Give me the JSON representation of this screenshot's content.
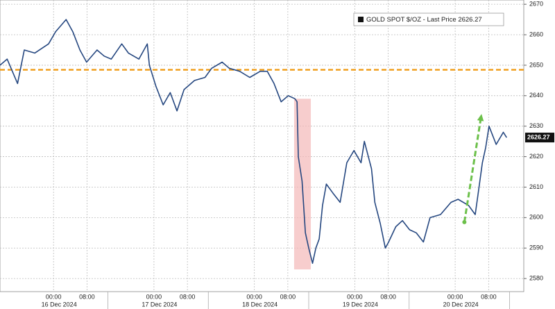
{
  "chart_data": {
    "type": "line",
    "series": [
      {
        "name": "GOLD SPOT $/OZ - Last Price 2626.27",
        "color": "#24467f",
        "values": [
          2650,
          2652,
          2644,
          2655,
          2654,
          2657,
          2661,
          2665,
          2661,
          2655,
          2651,
          2655,
          2653,
          2652,
          2657,
          2654,
          2652,
          2657,
          2650,
          2643,
          2637,
          2641,
          2635,
          2642,
          2645,
          2646,
          2649,
          2651,
          2649,
          2648,
          2646,
          2648,
          2648,
          2644,
          2638,
          2640,
          2639,
          2638,
          2620,
          2612,
          2595,
          2590,
          2585,
          2590,
          2593,
          2604,
          2611,
          2608,
          2605,
          2618,
          2622,
          2618,
          2625,
          2616,
          2605,
          2598,
          2590,
          2592,
          2597,
          2599,
          2596,
          2595,
          2592,
          2600,
          2601,
          2605,
          2606,
          2604,
          2601,
          2610,
          2618,
          2623,
          2630,
          2624,
          2628,
          2626.27
        ]
      }
    ],
    "x": [
      -12.8,
      -11.1,
      -8.6,
      -7.0,
      -4.5,
      -1.2,
      0.5,
      3.0,
      4.6,
      6.3,
      7.9,
      10.4,
      12.1,
      13.8,
      16.3,
      17.9,
      20.4,
      22.4,
      22.9,
      24.5,
      26.2,
      27.9,
      29.5,
      31.2,
      33.7,
      36.2,
      37.8,
      40.3,
      42.0,
      44.5,
      46.9,
      49.4,
      51.1,
      52.7,
      54.4,
      56.1,
      57.7,
      58.2,
      58.5,
      59.4,
      60.2,
      61.0,
      61.9,
      62.7,
      63.5,
      64.3,
      65.2,
      66.8,
      68.5,
      70.1,
      71.8,
      73.5,
      74.3,
      76.0,
      76.8,
      78.1,
      79.3,
      80.1,
      81.8,
      83.4,
      85.1,
      86.7,
      88.4,
      90.0,
      92.5,
      95.0,
      96.7,
      99.2,
      100.8,
      101.7,
      102.5,
      103.3,
      104.1,
      105.8,
      107.5,
      108.3
    ],
    "xlim": [
      -12.8,
      112.4
    ],
    "xticks": [
      {
        "value": 0,
        "label": "00:00"
      },
      {
        "value": 8,
        "label": "08:00"
      },
      {
        "value": 24,
        "label": "00:00"
      },
      {
        "value": 32,
        "label": "08:00"
      },
      {
        "value": 48,
        "label": "00:00"
      },
      {
        "value": 56,
        "label": "08:00"
      },
      {
        "value": 72,
        "label": "00:00"
      },
      {
        "value": 80,
        "label": "08:00"
      },
      {
        "value": 96,
        "label": "00:00"
      },
      {
        "value": 104,
        "label": "08:00"
      }
    ],
    "x_date_labels": [
      {
        "value": 0,
        "label": "16 Dec 2024"
      },
      {
        "value": 24,
        "label": "17 Dec 2024"
      },
      {
        "value": 48,
        "label": "18 Dec 2024"
      },
      {
        "value": 72,
        "label": "19 Dec 2024"
      },
      {
        "value": 96,
        "label": "20 Dec 2024"
      }
    ],
    "ylim": [
      2575.7,
      2671.4
    ],
    "yticks": [
      2580,
      2590,
      2600,
      2610,
      2620,
      2630,
      2640,
      2650,
      2660,
      2670
    ],
    "grid": true,
    "last_price": 2626.27,
    "reference_line": {
      "value": 2648.5,
      "color": "#f0a020"
    },
    "highlight": {
      "x": [
        57.5,
        61.5
      ],
      "y": [
        2583,
        2639
      ],
      "color": "#f4b8b8"
    },
    "arrow": {
      "x": [
        98.2,
        102.3
      ],
      "y": [
        2598.5,
        2634
      ],
      "color": "#6cc04a"
    }
  }
}
